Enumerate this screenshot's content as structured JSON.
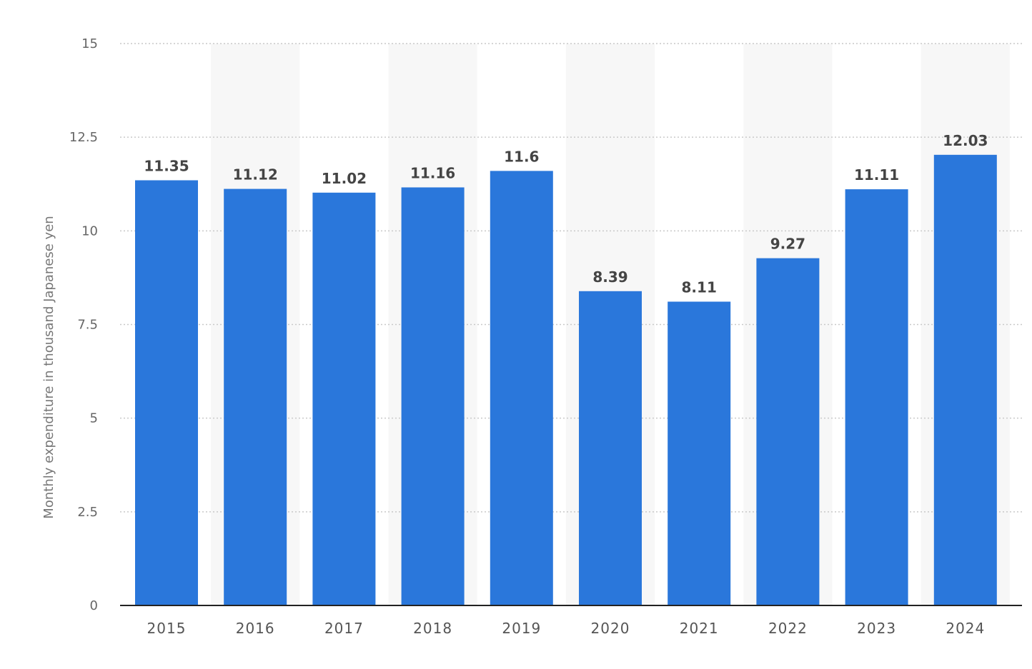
{
  "chart_data": {
    "type": "bar",
    "categories": [
      "2015",
      "2016",
      "2017",
      "2018",
      "2019",
      "2020",
      "2021",
      "2022",
      "2023",
      "2024"
    ],
    "values": [
      11.35,
      11.12,
      11.02,
      11.16,
      11.6,
      8.39,
      8.11,
      9.27,
      11.11,
      12.03
    ],
    "value_labels": [
      "11.35",
      "11.12",
      "11.02",
      "11.16",
      "11.6",
      "8.39",
      "8.11",
      "9.27",
      "11.11",
      "12.03"
    ],
    "title": "",
    "xlabel": "",
    "ylabel": "Monthly expenditure in thousand Japanese yen",
    "ylim": [
      0,
      15
    ],
    "yticks": [
      "0",
      "2.5",
      "5",
      "7.5",
      "10",
      "12.5",
      "15"
    ],
    "grid": true,
    "legend": "none",
    "colors": {
      "bar": "#2a77db",
      "band": "#f7f7f7",
      "grid": "#c9c9c9",
      "axis": "#222222"
    }
  }
}
